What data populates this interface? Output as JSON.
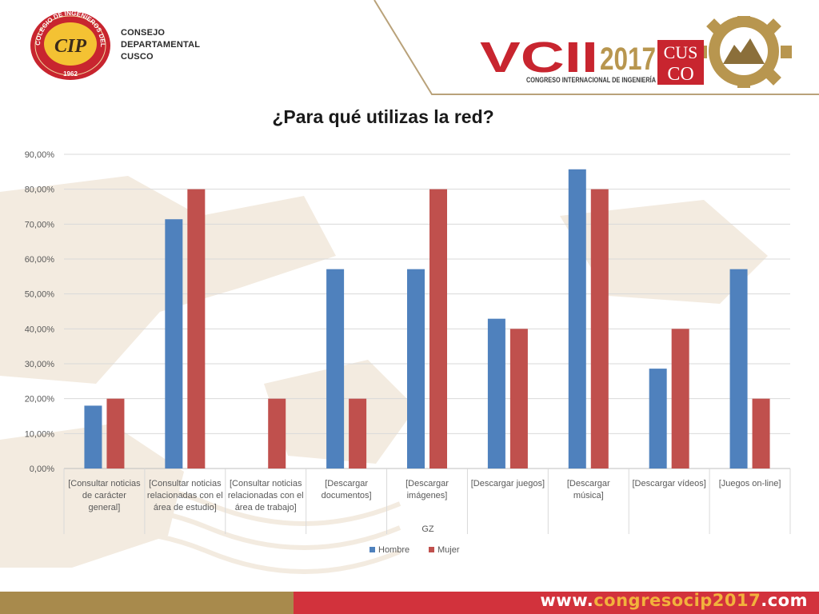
{
  "header": {
    "seal": {
      "ring_text": "COLEGIO DE INGENIEROS DEL PERÚ",
      "year": "1962",
      "monogram": "CIP"
    },
    "council_lines": [
      "CONSEJO",
      "DEPARTAMENTAL",
      "CUSCO"
    ],
    "congress": {
      "edition": "VCII",
      "year": "2017",
      "city_top": "CUS",
      "city_bottom": "CO",
      "subtitle": "CONGRESO INTERNACIONAL DE INGENIERÍA"
    }
  },
  "slide_title": "¿Para qué utilizas la red?",
  "chart_data": {
    "type": "bar",
    "title": "",
    "xlabel": "GZ",
    "ylabel": "",
    "ylim": [
      0,
      90
    ],
    "y_ticks": [
      "0,00%",
      "10,00%",
      "20,00%",
      "30,00%",
      "40,00%",
      "50,00%",
      "60,00%",
      "70,00%",
      "80,00%",
      "90,00%"
    ],
    "categories": [
      [
        "[Consultar noticias",
        "de carácter",
        "general]"
      ],
      [
        "[Consultar noticias",
        "relacionadas con el",
        "área de estudio]"
      ],
      [
        "[Consultar noticias",
        "relacionadas con el",
        "área de trabajo]"
      ],
      [
        "[Descargar",
        "documentos]"
      ],
      [
        "[Descargar",
        "imágenes]"
      ],
      [
        "[Descargar juegos]"
      ],
      [
        "[Descargar",
        "música]"
      ],
      [
        "[Descargar vídeos]"
      ],
      [
        "[Juegos on-line]"
      ]
    ],
    "series": [
      {
        "name": "Hombre",
        "color": "#4f81bd",
        "values": [
          18,
          71.4,
          0,
          57.1,
          57.1,
          42.9,
          85.7,
          28.6,
          57.1
        ]
      },
      {
        "name": "Mujer",
        "color": "#c0504d",
        "values": [
          20,
          80,
          20,
          20,
          80,
          40,
          80,
          40,
          20
        ]
      }
    ],
    "grid": true,
    "legend": "bottom"
  },
  "footer": {
    "url_prefix": "www.",
    "url_highlight": "congresocip2017",
    "url_suffix": ".com"
  },
  "colors": {
    "gold": "#a88a4c",
    "red": "#d2323c",
    "accent": "#f2b23c"
  }
}
